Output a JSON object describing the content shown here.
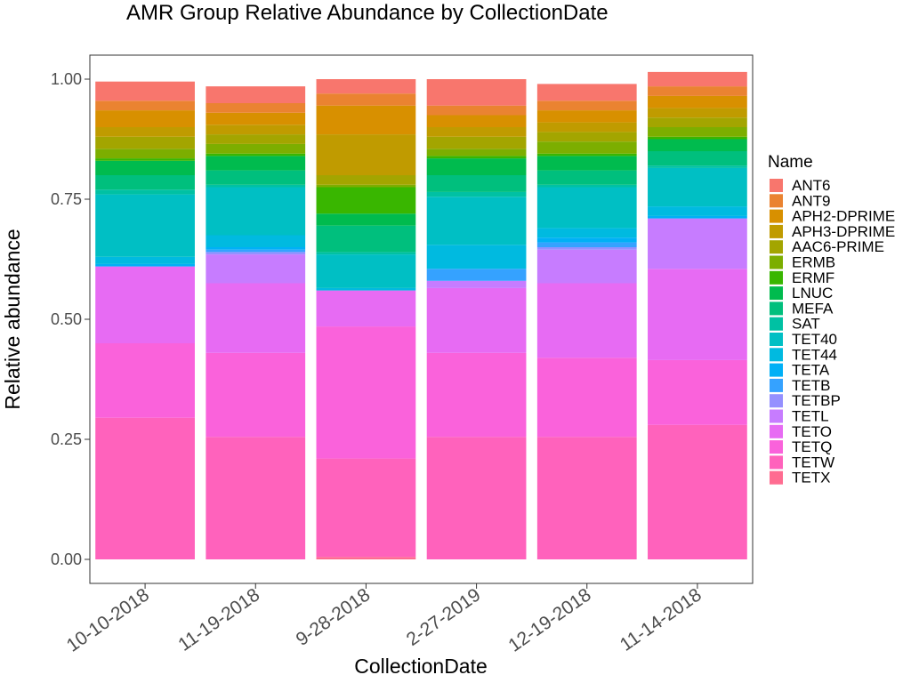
{
  "chart_data": {
    "type": "bar",
    "stacked": true,
    "title": "AMR Group Relative Abundance by CollectionDate",
    "xlabel": "CollectionDate",
    "ylabel": "Relative abundance",
    "ylim": [
      0,
      1
    ],
    "yticks": [
      "0.00",
      "0.25",
      "0.50",
      "0.75",
      "1.00"
    ],
    "grid": false,
    "legend_title": "Name",
    "legend_position": "right",
    "categories": [
      "10-10-2018",
      "11-19-2018",
      "9-28-2018",
      "2-27-2019",
      "12-19-2018",
      "11-14-2018"
    ],
    "series": [
      {
        "name": "ANT6",
        "color": "#F8766D",
        "values": [
          0.04,
          0.035,
          0.03,
          0.055,
          0.035,
          0.03
        ]
      },
      {
        "name": "ANT9",
        "color": "#EA8331",
        "values": [
          0.02,
          0.02,
          0.025,
          0.02,
          0.02,
          0.02
        ]
      },
      {
        "name": "APH2-DPRIME",
        "color": "#D89000",
        "values": [
          0.035,
          0.025,
          0.06,
          0.025,
          0.025,
          0.025
        ]
      },
      {
        "name": "APH3-DPRIME",
        "color": "#C09B00",
        "values": [
          0.02,
          0.02,
          0.085,
          0.02,
          0.02,
          0.02
        ]
      },
      {
        "name": "AAC6-PRIME",
        "color": "#A3A500",
        "values": [
          0.025,
          0.02,
          0.02,
          0.025,
          0.02,
          0.02
        ]
      },
      {
        "name": "ERMB",
        "color": "#7CAE00",
        "values": [
          0.02,
          0.02,
          0.005,
          0.015,
          0.025,
          0.02
        ]
      },
      {
        "name": "ERMF",
        "color": "#39B600",
        "values": [
          0.005,
          0.005,
          0.055,
          0.005,
          0.005,
          0.005
        ]
      },
      {
        "name": "LNUC",
        "color": "#00BB4E",
        "values": [
          0.03,
          0.03,
          0.025,
          0.035,
          0.03,
          0.025
        ]
      },
      {
        "name": "MEFA",
        "color": "#00BF7D",
        "values": [
          0.03,
          0.03,
          0.055,
          0.035,
          0.03,
          0.03
        ]
      },
      {
        "name": "SAT",
        "color": "#00C1A3",
        "values": [
          0.01,
          0.005,
          0.005,
          0.01,
          0.005,
          0.005
        ]
      },
      {
        "name": "TET40",
        "color": "#00BFC4",
        "values": [
          0.13,
          0.1,
          0.07,
          0.1,
          0.085,
          0.08
        ]
      },
      {
        "name": "TET44",
        "color": "#00BAE0",
        "values": [
          0.015,
          0.025,
          0.005,
          0.05,
          0.02,
          0.02
        ]
      },
      {
        "name": "TETA",
        "color": "#00B0F6",
        "values": [
          0.005,
          0.005,
          0.0,
          0.0,
          0.01,
          0.005
        ]
      },
      {
        "name": "TETB",
        "color": "#35A2FF",
        "values": [
          0.0,
          0.005,
          0.0,
          0.025,
          0.01,
          0.0
        ]
      },
      {
        "name": "TETBP",
        "color": "#9590FF",
        "values": [
          0.0,
          0.005,
          0.0,
          0.0,
          0.005,
          0.0
        ]
      },
      {
        "name": "TETL",
        "color": "#C77CFF",
        "values": [
          0.0,
          0.06,
          0.0,
          0.015,
          0.07,
          0.105
        ]
      },
      {
        "name": "TETO",
        "color": "#E76BF3",
        "values": [
          0.16,
          0.145,
          0.075,
          0.135,
          0.155,
          0.19
        ]
      },
      {
        "name": "TETQ",
        "color": "#FA62DB",
        "values": [
          0.155,
          0.175,
          0.275,
          0.175,
          0.165,
          0.135
        ]
      },
      {
        "name": "TETW",
        "color": "#FF62BC",
        "values": [
          0.295,
          0.255,
          0.205,
          0.255,
          0.255,
          0.28
        ]
      },
      {
        "name": "TETX",
        "color": "#FF6C91",
        "values": [
          0.0,
          0.0,
          0.005,
          0.0,
          0.0,
          0.0
        ]
      }
    ]
  }
}
